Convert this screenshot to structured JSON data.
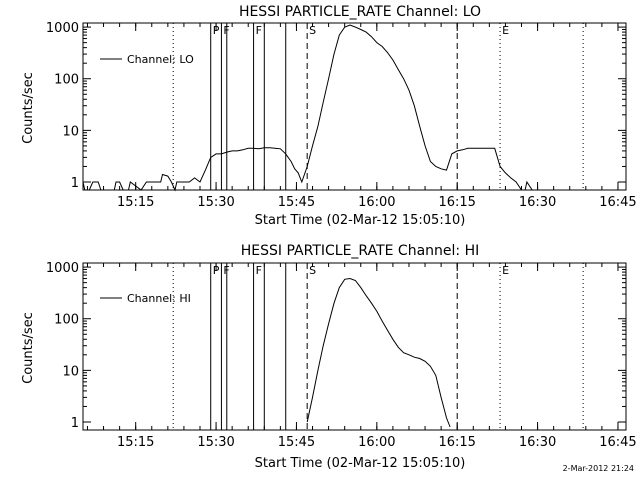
{
  "footer": {
    "timestamp": "2-Mar-2012 21:24"
  },
  "chart_data": [
    {
      "type": "line",
      "title": "HESSI PARTICLE_RATE Channel: LO",
      "xlabel": "Start Time (02-Mar-12 15:05:10)",
      "ylabel": "Counts/sec",
      "yscale": "log",
      "ylim": [
        0.7,
        1200
      ],
      "xlim": [
        "15:05:10",
        "16:46:30"
      ],
      "x_ticks": [
        "15:15",
        "15:30",
        "15:45",
        "16:00",
        "16:15",
        "16:30",
        "16:45"
      ],
      "y_ticks": [
        "1",
        "10",
        "100",
        "1000"
      ],
      "legend": {
        "label": "Channel: LO",
        "position": "top-left"
      },
      "markers": [
        {
          "time": "15:22:00",
          "style": "dotted"
        },
        {
          "time": "15:29:00",
          "style": "solid",
          "label": "P"
        },
        {
          "time": "15:31:00",
          "style": "solid",
          "label": "F"
        },
        {
          "time": "15:32:00",
          "style": "solid"
        },
        {
          "time": "15:37:00",
          "style": "solid",
          "label": "F"
        },
        {
          "time": "15:39:00",
          "style": "solid"
        },
        {
          "time": "15:43:00",
          "style": "solid"
        },
        {
          "time": "15:47:00",
          "style": "dashed",
          "label": "S"
        },
        {
          "time": "16:15:00",
          "style": "dashed"
        },
        {
          "time": "16:23:00",
          "style": "dotted",
          "label": "E"
        },
        {
          "time": "16:38:30",
          "style": "dotted"
        }
      ],
      "series": [
        {
          "name": "Channel: LO",
          "x": [
            "15:05:10",
            "15:05:30",
            "15:06:20",
            "15:07:00",
            "15:08:00",
            "15:08:30",
            "15:09:00",
            "15:11:00",
            "15:11:20",
            "15:12:00",
            "15:12:40",
            "15:13:40",
            "15:14:00",
            "15:16:00",
            "15:17:00",
            "15:18:00",
            "15:19:40",
            "15:20:00",
            "15:21:00",
            "15:21:40",
            "15:22:20",
            "15:22:40",
            "15:24:00",
            "15:25:00",
            "15:26:00",
            "15:27:00",
            "15:28:00",
            "15:29:00",
            "15:30:00",
            "15:31:00",
            "15:32:00",
            "15:33:00",
            "15:34:00",
            "15:35:00",
            "15:36:00",
            "15:37:00",
            "15:38:00",
            "15:39:00",
            "15:40:00",
            "15:41:00",
            "15:42:00",
            "15:43:00",
            "15:44:00",
            "15:44:40",
            "15:45:20",
            "15:46:00",
            "15:47:00",
            "15:48:00",
            "15:49:00",
            "15:50:00",
            "15:51:00",
            "15:52:00",
            "15:53:00",
            "15:54:00",
            "15:55:00",
            "15:56:00",
            "15:57:00",
            "15:58:00",
            "15:59:00",
            "16:00:00",
            "16:01:00",
            "16:02:00",
            "16:03:00",
            "16:04:00",
            "16:05:00",
            "16:06:00",
            "16:07:00",
            "16:08:00",
            "16:09:00",
            "16:10:00",
            "16:11:00",
            "16:12:00",
            "16:13:00",
            "16:14:00",
            "16:15:00",
            "16:16:00",
            "16:17:00",
            "16:18:00",
            "16:19:00",
            "16:20:00",
            "16:21:00",
            "16:22:00",
            "16:23:00",
            "16:24:00",
            "16:25:00",
            "16:26:00",
            "16:27:00",
            "16:27:40",
            "16:28:00",
            "16:29:00"
          ],
          "y": [
            1,
            0.7,
            0.7,
            1,
            1,
            0.7,
            0.7,
            0.7,
            1,
            1,
            0.7,
            0.7,
            1,
            0.7,
            1,
            1,
            1,
            1.4,
            1.3,
            1,
            0.7,
            1,
            1,
            1,
            1.2,
            1,
            1.7,
            3,
            3.5,
            3.5,
            3.8,
            4,
            4,
            4.2,
            4.5,
            4.5,
            4.4,
            4.6,
            4.6,
            4.5,
            4.4,
            3.5,
            2.5,
            1.8,
            1.5,
            1,
            2,
            5,
            12,
            35,
            100,
            300,
            700,
            1000,
            1100,
            1000,
            900,
            800,
            650,
            500,
            420,
            320,
            230,
            150,
            100,
            60,
            30,
            12,
            5,
            2.5,
            2,
            1.8,
            1.7,
            3.5,
            4,
            4.2,
            4.5,
            4.5,
            4.5,
            4.5,
            4.5,
            4.5,
            2,
            1.5,
            1.2,
            1,
            0.7,
            0.7,
            1,
            0.7
          ]
        }
      ]
    },
    {
      "type": "line",
      "title": "HESSI PARTICLE_RATE Channel: HI",
      "xlabel": "Start Time (02-Mar-12 15:05:10)",
      "ylabel": "Counts/sec",
      "yscale": "log",
      "ylim": [
        0.7,
        1200
      ],
      "xlim": [
        "15:05:10",
        "16:46:30"
      ],
      "x_ticks": [
        "15:15",
        "15:30",
        "15:45",
        "16:00",
        "16:15",
        "16:30",
        "16:45"
      ],
      "y_ticks": [
        "1",
        "10",
        "100",
        "1000"
      ],
      "legend": {
        "label": "Channel: HI",
        "position": "top-left"
      },
      "markers": [
        {
          "time": "15:22:00",
          "style": "dotted"
        },
        {
          "time": "15:29:00",
          "style": "solid",
          "label": "P"
        },
        {
          "time": "15:31:00",
          "style": "solid",
          "label": "F"
        },
        {
          "time": "15:32:00",
          "style": "solid"
        },
        {
          "time": "15:37:00",
          "style": "solid",
          "label": "F"
        },
        {
          "time": "15:39:00",
          "style": "solid"
        },
        {
          "time": "15:43:00",
          "style": "solid"
        },
        {
          "time": "15:47:00",
          "style": "dashed",
          "label": "S"
        },
        {
          "time": "16:15:00",
          "style": "dashed"
        },
        {
          "time": "16:23:00",
          "style": "dotted",
          "label": "E"
        },
        {
          "time": "16:38:30",
          "style": "dotted"
        }
      ],
      "series": [
        {
          "name": "Channel: HI",
          "x": [
            "15:47:00",
            "15:48:00",
            "15:49:00",
            "15:50:00",
            "15:51:00",
            "15:52:00",
            "15:53:00",
            "15:54:00",
            "15:55:00",
            "15:56:00",
            "15:57:00",
            "15:58:00",
            "15:59:00",
            "16:00:00",
            "16:01:00",
            "16:02:00",
            "16:03:00",
            "16:04:00",
            "16:05:00",
            "16:06:00",
            "16:07:00",
            "16:08:00",
            "16:09:00",
            "16:10:00",
            "16:11:00",
            "16:12:00",
            "16:13:00",
            "16:13:40"
          ],
          "y": [
            1,
            3,
            10,
            30,
            80,
            200,
            400,
            580,
            600,
            550,
            400,
            280,
            200,
            140,
            90,
            60,
            40,
            28,
            22,
            20,
            18,
            17,
            15,
            12,
            8,
            3,
            1.2,
            0.8
          ]
        }
      ]
    }
  ]
}
